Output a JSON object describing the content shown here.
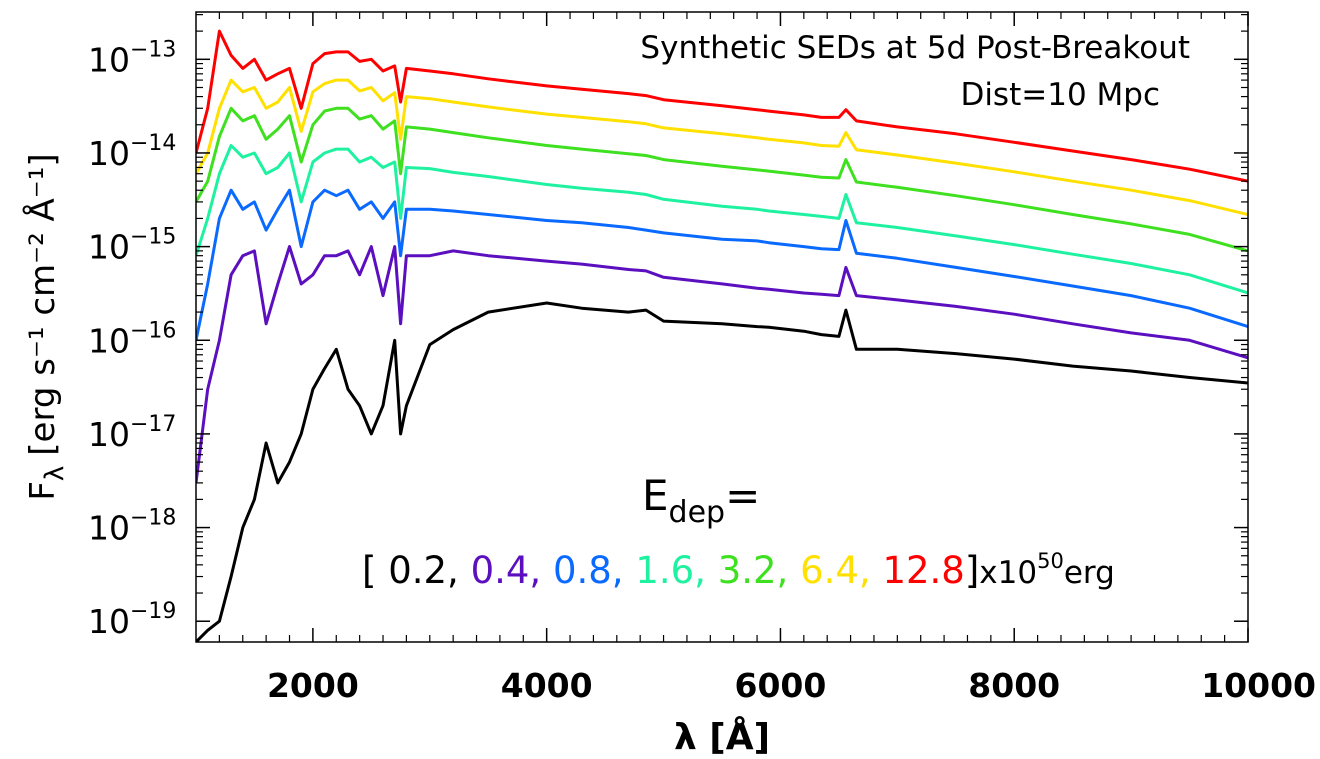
{
  "chart_data": {
    "type": "line",
    "title": "Synthetic SEDs at 5d Post-Breakout",
    "subtitle": "Dist=10 Mpc",
    "xlabel": "λ [Å]",
    "ylabel_main": "F",
    "ylabel_sub": "λ",
    "ylabel_units": "[erg s⁻¹ cm⁻² Å⁻¹]",
    "xscale": "linear",
    "yscale": "log",
    "xlim": [
      1000,
      10000
    ],
    "ylim": [
      6e-20,
      3.2e-13
    ],
    "x_ticks": [
      2000,
      4000,
      6000,
      8000,
      10000
    ],
    "x_tick_labels": [
      "2000",
      "4000",
      "6000",
      "8000",
      "10000"
    ],
    "y_ticks": [
      -19,
      -18,
      -17,
      -16,
      -15,
      -14,
      -13
    ],
    "y_tick_labels": [
      "10",
      "10",
      "10",
      "10",
      "10",
      "10",
      "10"
    ],
    "y_tick_exponents": [
      "−19",
      "−18",
      "−17",
      "−16",
      "−15",
      "−14",
      "−13"
    ],
    "grid": false,
    "legend_label": {
      "main": "E",
      "sub": "dep",
      "suffix": "="
    },
    "legend_values_open": "[",
    "legend_values_close": "]",
    "legend_unit_prefix": "x10",
    "legend_unit_exponent": "50",
    "legend_unit_suffix": "erg",
    "x": [
      1000,
      1100,
      1200,
      1300,
      1400,
      1500,
      1600,
      1700,
      1800,
      1900,
      2000,
      2100,
      2200,
      2300,
      2400,
      2500,
      2600,
      2700,
      2750,
      2800,
      3000,
      3200,
      3500,
      4000,
      4300,
      4700,
      4850,
      5000,
      5500,
      5800,
      5900,
      6200,
      6350,
      6500,
      6560,
      6650,
      7000,
      7500,
      8000,
      8500,
      9000,
      9500,
      10000
    ],
    "series": [
      {
        "name": "0.2",
        "color": "#000000",
        "values": [
          6e-20,
          8e-20,
          1e-19,
          3e-19,
          1e-18,
          2e-18,
          8e-18,
          3e-18,
          5e-18,
          1e-17,
          3e-17,
          5e-17,
          8e-17,
          3e-17,
          2e-17,
          1e-17,
          2e-17,
          1e-16,
          1e-17,
          2e-17,
          9e-17,
          1.3e-16,
          2e-16,
          2.5e-16,
          2.2e-16,
          2e-16,
          2.1e-16,
          1.6e-16,
          1.5e-16,
          1.4e-16,
          1.38e-16,
          1.25e-16,
          1.15e-16,
          1.1e-16,
          2.1e-16,
          8e-17,
          8e-17,
          7.2e-17,
          6.3e-17,
          5.3e-17,
          4.7e-17,
          4e-17,
          3.5e-17
        ]
      },
      {
        "name": "0.4",
        "color": "#5b0fbf",
        "values": [
          3e-18,
          3e-17,
          1e-16,
          5e-16,
          8e-16,
          9e-16,
          1.5e-16,
          4e-16,
          1e-15,
          4e-16,
          5e-16,
          8e-16,
          8e-16,
          9e-16,
          5e-16,
          1e-15,
          3e-16,
          1e-15,
          1.5e-16,
          8e-16,
          8e-16,
          9e-16,
          8e-16,
          7e-16,
          6.5e-16,
          5.7e-16,
          5.5e-16,
          4.7e-16,
          4e-16,
          3.6e-16,
          3.5e-16,
          3.2e-16,
          3.1e-16,
          3e-16,
          6e-16,
          3e-16,
          2.7e-16,
          2.3e-16,
          1.9e-16,
          1.5e-16,
          1.2e-16,
          1e-16,
          6.5e-17
        ]
      },
      {
        "name": "0.8",
        "color": "#0a6aff",
        "values": [
          1e-16,
          4e-16,
          2e-15,
          4e-15,
          2.5e-15,
          3e-15,
          1.5e-15,
          2.5e-15,
          4e-15,
          1e-15,
          3e-15,
          4e-15,
          3.5e-15,
          4e-15,
          2.5e-15,
          3e-15,
          2e-15,
          3e-15,
          8e-16,
          2.5e-15,
          2.5e-15,
          2.4e-15,
          2.2e-15,
          1.9e-15,
          1.8e-15,
          1.6e-15,
          1.5e-15,
          1.4e-15,
          1.2e-15,
          1.15e-15,
          1.1e-15,
          1e-15,
          9.5e-16,
          9.3e-16,
          1.9e-15,
          8.5e-16,
          7.5e-16,
          6e-16,
          4.8e-16,
          3.8e-16,
          3e-16,
          2.2e-16,
          1.4e-16
        ]
      },
      {
        "name": "1.6",
        "color": "#1ef2a0",
        "values": [
          8e-16,
          2e-15,
          6e-15,
          1.2e-14,
          9e-15,
          1e-14,
          6e-15,
          7e-15,
          1e-14,
          3e-15,
          8e-15,
          1e-14,
          1.1e-14,
          1.1e-14,
          8e-15,
          9e-15,
          7e-15,
          8e-15,
          2e-15,
          7e-15,
          6.8e-15,
          6.2e-15,
          5.6e-15,
          4.6e-15,
          4.2e-15,
          3.8e-15,
          3.6e-15,
          3.2e-15,
          2.7e-15,
          2.5e-15,
          2.4e-15,
          2.2e-15,
          2.1e-15,
          2e-15,
          3.6e-15,
          1.8e-15,
          1.6e-15,
          1.3e-15,
          1.05e-15,
          8.3e-16,
          6.6e-16,
          5e-16,
          3.2e-16
        ]
      },
      {
        "name": "3.2",
        "color": "#3ee01f",
        "values": [
          3e-15,
          5e-15,
          1.5e-14,
          3e-14,
          2.2e-14,
          2.5e-14,
          1.4e-14,
          1.8e-14,
          2.5e-14,
          8e-15,
          2e-14,
          2.8e-14,
          3e-14,
          3e-14,
          2.3e-14,
          2.5e-14,
          1.8e-14,
          2.2e-14,
          6e-15,
          1.9e-14,
          1.8e-14,
          1.65e-14,
          1.45e-14,
          1.2e-14,
          1.1e-14,
          9.8e-15,
          9.4e-15,
          8.5e-15,
          7.2e-15,
          6.6e-15,
          6.4e-15,
          5.8e-15,
          5.5e-15,
          5.4e-15,
          8.5e-15,
          4.9e-15,
          4.3e-15,
          3.5e-15,
          2.8e-15,
          2.2e-15,
          1.75e-15,
          1.35e-15,
          9e-16
        ]
      },
      {
        "name": "6.4",
        "color": "#ffe000",
        "values": [
          6e-15,
          1e-14,
          3e-14,
          6e-14,
          4.5e-14,
          5e-14,
          3e-14,
          3.5e-14,
          5e-14,
          1.7e-14,
          4.5e-14,
          5.5e-14,
          6e-14,
          6e-14,
          4.6e-14,
          5e-14,
          3.6e-14,
          4.4e-14,
          1.4e-14,
          4e-14,
          3.8e-14,
          3.5e-14,
          3.1e-14,
          2.6e-14,
          2.4e-14,
          2.15e-14,
          2.05e-14,
          1.85e-14,
          1.6e-14,
          1.45e-14,
          1.4e-14,
          1.28e-14,
          1.2e-14,
          1.18e-14,
          1.65e-14,
          1.08e-14,
          9.5e-15,
          7.8e-15,
          6.3e-15,
          5e-15,
          4e-15,
          3.1e-15,
          2.2e-15
        ]
      },
      {
        "name": "12.8",
        "color": "#ff0000",
        "values": [
          1e-14,
          3e-14,
          2e-13,
          1.1e-13,
          8e-14,
          1e-13,
          6e-14,
          7e-14,
          8e-14,
          3e-14,
          9e-14,
          1.15e-13,
          1.2e-13,
          1.2e-13,
          9.5e-14,
          1e-13,
          7.5e-14,
          8.5e-14,
          3.5e-14,
          8e-14,
          7.5e-14,
          7e-14,
          6.2e-14,
          5.2e-14,
          4.8e-14,
          4.3e-14,
          4.1e-14,
          3.7e-14,
          3.2e-14,
          2.9e-14,
          2.8e-14,
          2.55e-14,
          2.4e-14,
          2.4e-14,
          2.9e-14,
          2.2e-14,
          1.9e-14,
          1.6e-14,
          1.3e-14,
          1.05e-14,
          8.5e-15,
          6.7e-15,
          5e-15
        ]
      }
    ]
  }
}
